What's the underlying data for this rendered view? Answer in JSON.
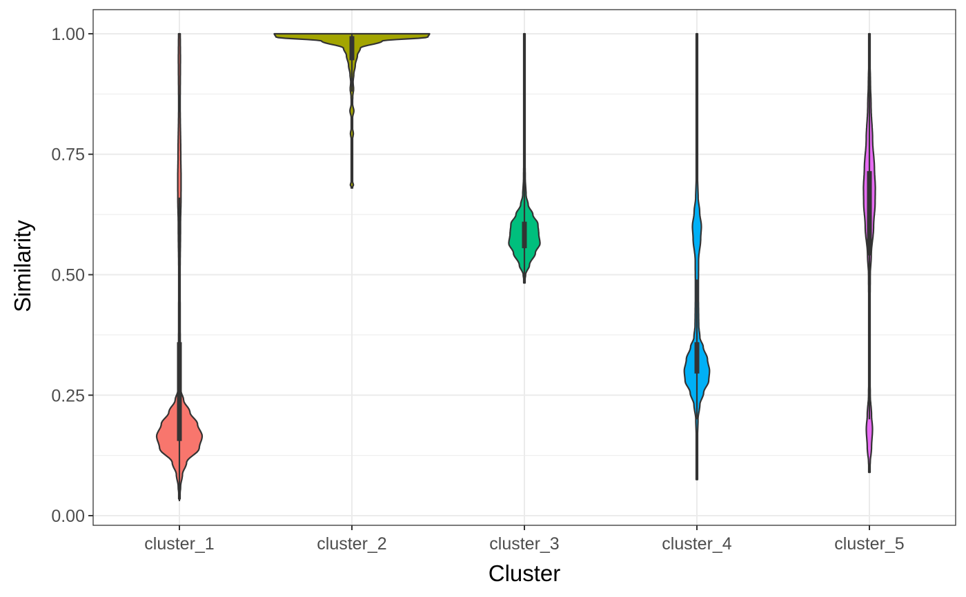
{
  "chart_data": {
    "type": "violin",
    "title": "",
    "xlabel": "Cluster",
    "ylabel": "Similarity",
    "ylim": [
      -0.02,
      1.05
    ],
    "y_ticks": [
      0.0,
      0.25,
      0.5,
      0.75,
      1.0
    ],
    "y_tick_labels": [
      "0.00",
      "0.25",
      "0.50",
      "0.75",
      "1.00"
    ],
    "grid": true,
    "legend": "none",
    "categories": [
      "cluster_1",
      "cluster_2",
      "cluster_3",
      "cluster_4",
      "cluster_5"
    ],
    "series": [
      {
        "category": "cluster_1",
        "color": "#F8766D",
        "box": {
          "q1": 0.155,
          "median": 0.2,
          "q3": 0.36,
          "whisker_low": 0.03,
          "whisker_high": 0.66
        },
        "density": [
          [
            0.035,
            0.1
          ],
          [
            0.06,
            1.4
          ],
          [
            0.085,
            3.6
          ],
          [
            0.11,
            8.5
          ],
          [
            0.14,
            23.5
          ],
          [
            0.165,
            27.0
          ],
          [
            0.19,
            21.5
          ],
          [
            0.215,
            12.5
          ],
          [
            0.24,
            5.0
          ],
          [
            0.26,
            1.8
          ],
          [
            0.3,
            1.2
          ],
          [
            0.4,
            0.9
          ],
          [
            0.5,
            0.8
          ],
          [
            0.6,
            1.3
          ],
          [
            0.66,
            1.9
          ],
          [
            0.7,
            2.0
          ],
          [
            0.75,
            1.6
          ],
          [
            0.85,
            0.9
          ],
          [
            0.95,
            1.2
          ],
          [
            1.0,
            1.0
          ]
        ]
      },
      {
        "category": "cluster_2",
        "color": "#A3A500",
        "box": {
          "q1": 0.945,
          "median": 0.985,
          "q3": 0.995,
          "whisker_low": 0.88,
          "whisker_high": 1.0
        },
        "density": [
          [
            0.68,
            0.0
          ],
          [
            0.686,
            1.8
          ],
          [
            0.694,
            0.7
          ],
          [
            0.72,
            0.7
          ],
          [
            0.78,
            0.7
          ],
          [
            0.793,
            1.7
          ],
          [
            0.805,
            0.7
          ],
          [
            0.825,
            0.7
          ],
          [
            0.84,
            2.3
          ],
          [
            0.855,
            0.7
          ],
          [
            0.87,
            1.0
          ],
          [
            0.885,
            2.0
          ],
          [
            0.9,
            1.4
          ],
          [
            0.915,
            2.2
          ],
          [
            0.935,
            4.0
          ],
          [
            0.955,
            6.5
          ],
          [
            0.97,
            10.0
          ],
          [
            0.985,
            36.0
          ],
          [
            0.993,
            90.0
          ],
          [
            1.0,
            92.0
          ]
        ]
      },
      {
        "category": "cluster_3",
        "color": "#00BF7D",
        "box": {
          "q1": 0.555,
          "median": 0.585,
          "q3": 0.61,
          "whisker_low": 0.49,
          "whisker_high": 1.0
        },
        "density": [
          [
            0.483,
            0.0
          ],
          [
            0.5,
            1.4
          ],
          [
            0.52,
            6.0
          ],
          [
            0.545,
            13.0
          ],
          [
            0.565,
            18.5
          ],
          [
            0.585,
            17.0
          ],
          [
            0.605,
            16.0
          ],
          [
            0.625,
            10.0
          ],
          [
            0.645,
            4.5
          ],
          [
            0.665,
            2.0
          ],
          [
            0.7,
            1.0
          ],
          [
            0.75,
            0.6
          ],
          [
            0.8,
            0.5
          ],
          [
            0.85,
            0.5
          ],
          [
            0.9,
            0.3
          ],
          [
            0.95,
            0.4
          ],
          [
            1.0,
            0.2
          ]
        ]
      },
      {
        "category": "cluster_4",
        "color": "#00B0F6",
        "box": {
          "q1": 0.295,
          "median": 0.32,
          "q3": 0.36,
          "whisker_low": 0.2,
          "whisker_high": 0.49
        },
        "density": [
          [
            0.075,
            0.0
          ],
          [
            0.15,
            0.5
          ],
          [
            0.2,
            1.3
          ],
          [
            0.23,
            3.5
          ],
          [
            0.255,
            8.0
          ],
          [
            0.28,
            14.0
          ],
          [
            0.3,
            15.0
          ],
          [
            0.325,
            12.5
          ],
          [
            0.35,
            7.5
          ],
          [
            0.37,
            3.5
          ],
          [
            0.395,
            2.2
          ],
          [
            0.42,
            2.0
          ],
          [
            0.45,
            1.8
          ],
          [
            0.48,
            1.8
          ],
          [
            0.53,
            2.0
          ],
          [
            0.575,
            4.5
          ],
          [
            0.6,
            5.3
          ],
          [
            0.63,
            3.3
          ],
          [
            0.66,
            1.5
          ],
          [
            0.7,
            0.8
          ],
          [
            0.8,
            0.6
          ],
          [
            0.9,
            0.4
          ],
          [
            1.0,
            0.2
          ]
        ]
      },
      {
        "category": "cluster_5",
        "color": "#E76BF3",
        "box": {
          "q1": 0.54,
          "median": 0.66,
          "q3": 0.715,
          "whisker_low": 0.2,
          "whisker_high": 1.0
        },
        "density": [
          [
            0.09,
            0.0
          ],
          [
            0.11,
            1.0
          ],
          [
            0.14,
            2.5
          ],
          [
            0.18,
            3.7
          ],
          [
            0.21,
            2.5
          ],
          [
            0.25,
            1.0
          ],
          [
            0.3,
            0.5
          ],
          [
            0.4,
            0.5
          ],
          [
            0.5,
            1.0
          ],
          [
            0.54,
            2.2
          ],
          [
            0.6,
            5.0
          ],
          [
            0.65,
            6.8
          ],
          [
            0.68,
            7.0
          ],
          [
            0.72,
            6.0
          ],
          [
            0.78,
            3.8
          ],
          [
            0.85,
            2.0
          ],
          [
            0.9,
            1.2
          ],
          [
            0.95,
            0.6
          ],
          [
            1.0,
            0.3
          ]
        ]
      }
    ]
  }
}
